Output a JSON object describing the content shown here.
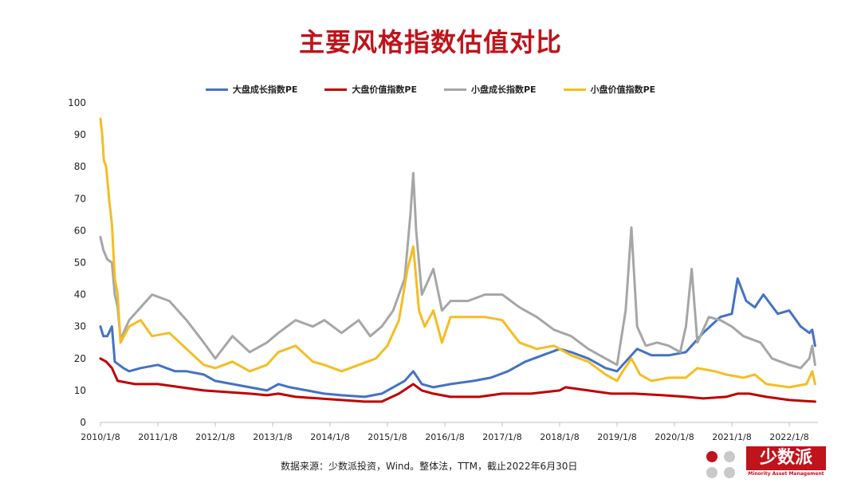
{
  "title": "主要风格指数估值对比",
  "source": "数据来源：少数派投资，Wind。整体法，TTM，截止2022年6月30日",
  "logo": {
    "text": "少数派",
    "subtitle": "Minority Asset Management"
  },
  "colors": {
    "title": "#c0131b",
    "large_growth": "#4472c4",
    "large_value": "#c00000",
    "small_growth": "#a6a6a6",
    "small_value": "#f5bd22"
  },
  "chart_data": {
    "type": "line",
    "title": "",
    "xlabel": "",
    "ylabel": "",
    "ylim": [
      0,
      100
    ],
    "yticks": [
      0,
      10,
      20,
      30,
      40,
      50,
      60,
      70,
      80,
      90,
      100
    ],
    "xlim": [
      2010.0,
      2022.5
    ],
    "xtick_labels": [
      "2010/1/8",
      "2011/1/8",
      "2012/1/8",
      "2013/1/8",
      "2014/1/8",
      "2015/1/8",
      "2016/1/8",
      "2017/1/8",
      "2018/1/8",
      "2019/1/8",
      "2020/1/8",
      "2021/1/8",
      "2022/1/8"
    ],
    "xtick_values": [
      2010.0,
      2011.0,
      2012.0,
      2013.0,
      2014.0,
      2015.0,
      2016.0,
      2017.0,
      2018.0,
      2019.0,
      2020.0,
      2021.0,
      2022.0
    ],
    "legend_position": "top",
    "grid": false,
    "series": [
      {
        "name": "大盘成长指数PE",
        "color": "#4472c4",
        "points": [
          [
            2010.0,
            30
          ],
          [
            2010.05,
            27
          ],
          [
            2010.12,
            27
          ],
          [
            2010.2,
            30
          ],
          [
            2010.25,
            19
          ],
          [
            2010.4,
            17
          ],
          [
            2010.5,
            16
          ],
          [
            2010.7,
            17
          ],
          [
            2011.0,
            18
          ],
          [
            2011.3,
            16
          ],
          [
            2011.5,
            16
          ],
          [
            2011.8,
            15
          ],
          [
            2012.0,
            13
          ],
          [
            2012.3,
            12
          ],
          [
            2012.6,
            11
          ],
          [
            2012.9,
            10
          ],
          [
            2013.1,
            12
          ],
          [
            2013.3,
            11
          ],
          [
            2013.6,
            10
          ],
          [
            2013.9,
            9
          ],
          [
            2014.2,
            8.5
          ],
          [
            2014.6,
            8
          ],
          [
            2014.9,
            9
          ],
          [
            2015.1,
            11
          ],
          [
            2015.3,
            13
          ],
          [
            2015.45,
            16
          ],
          [
            2015.6,
            12
          ],
          [
            2015.8,
            11
          ],
          [
            2016.1,
            12
          ],
          [
            2016.5,
            13
          ],
          [
            2016.8,
            14
          ],
          [
            2017.1,
            16
          ],
          [
            2017.4,
            19
          ],
          [
            2017.7,
            21
          ],
          [
            2018.0,
            23
          ],
          [
            2018.2,
            22
          ],
          [
            2018.5,
            20
          ],
          [
            2018.8,
            17
          ],
          [
            2019.0,
            16
          ],
          [
            2019.2,
            20
          ],
          [
            2019.35,
            23
          ],
          [
            2019.6,
            21
          ],
          [
            2019.9,
            21
          ],
          [
            2020.2,
            22
          ],
          [
            2020.5,
            28
          ],
          [
            2020.8,
            33
          ],
          [
            2021.0,
            34
          ],
          [
            2021.1,
            45
          ],
          [
            2021.25,
            38
          ],
          [
            2021.4,
            36
          ],
          [
            2021.55,
            40
          ],
          [
            2021.8,
            34
          ],
          [
            2022.0,
            35
          ],
          [
            2022.2,
            30
          ],
          [
            2022.35,
            28
          ],
          [
            2022.4,
            29
          ],
          [
            2022.45,
            24
          ]
        ]
      },
      {
        "name": "大盘价值指数PE",
        "color": "#c00000",
        "points": [
          [
            2010.0,
            20
          ],
          [
            2010.1,
            19
          ],
          [
            2010.2,
            17
          ],
          [
            2010.3,
            13
          ],
          [
            2010.6,
            12
          ],
          [
            2011.0,
            12
          ],
          [
            2011.4,
            11
          ],
          [
            2011.8,
            10
          ],
          [
            2012.2,
            9.5
          ],
          [
            2012.6,
            9
          ],
          [
            2012.9,
            8.5
          ],
          [
            2013.1,
            9
          ],
          [
            2013.4,
            8
          ],
          [
            2013.8,
            7.5
          ],
          [
            2014.2,
            7
          ],
          [
            2014.6,
            6.5
          ],
          [
            2014.9,
            6.5
          ],
          [
            2015.2,
            9
          ],
          [
            2015.45,
            12
          ],
          [
            2015.6,
            10
          ],
          [
            2015.8,
            9
          ],
          [
            2016.1,
            8
          ],
          [
            2016.6,
            8
          ],
          [
            2017.0,
            9
          ],
          [
            2017.5,
            9
          ],
          [
            2018.0,
            10
          ],
          [
            2018.1,
            11
          ],
          [
            2018.5,
            10
          ],
          [
            2018.9,
            9
          ],
          [
            2019.3,
            9
          ],
          [
            2019.8,
            8.5
          ],
          [
            2020.2,
            8
          ],
          [
            2020.5,
            7.5
          ],
          [
            2020.9,
            8
          ],
          [
            2021.1,
            9
          ],
          [
            2021.3,
            9
          ],
          [
            2021.6,
            8
          ],
          [
            2022.0,
            7
          ],
          [
            2022.45,
            6.5
          ]
        ]
      },
      {
        "name": "小盘成长指数PE",
        "color": "#a6a6a6",
        "points": [
          [
            2010.0,
            58
          ],
          [
            2010.05,
            54
          ],
          [
            2010.12,
            51
          ],
          [
            2010.2,
            50
          ],
          [
            2010.25,
            40
          ],
          [
            2010.3,
            36
          ],
          [
            2010.35,
            26
          ],
          [
            2010.5,
            32
          ],
          [
            2010.7,
            36
          ],
          [
            2010.9,
            40
          ],
          [
            2011.2,
            38
          ],
          [
            2011.5,
            32
          ],
          [
            2011.8,
            25
          ],
          [
            2012.0,
            20
          ],
          [
            2012.3,
            27
          ],
          [
            2012.6,
            22
          ],
          [
            2012.9,
            25
          ],
          [
            2013.1,
            28
          ],
          [
            2013.4,
            32
          ],
          [
            2013.7,
            30
          ],
          [
            2013.9,
            32
          ],
          [
            2014.2,
            28
          ],
          [
            2014.5,
            32
          ],
          [
            2014.7,
            27
          ],
          [
            2014.9,
            30
          ],
          [
            2015.1,
            35
          ],
          [
            2015.3,
            45
          ],
          [
            2015.4,
            65
          ],
          [
            2015.45,
            78
          ],
          [
            2015.5,
            60
          ],
          [
            2015.6,
            40
          ],
          [
            2015.8,
            48
          ],
          [
            2015.95,
            35
          ],
          [
            2016.1,
            38
          ],
          [
            2016.4,
            38
          ],
          [
            2016.7,
            40
          ],
          [
            2017.0,
            40
          ],
          [
            2017.3,
            36
          ],
          [
            2017.6,
            33
          ],
          [
            2017.9,
            29
          ],
          [
            2018.2,
            27
          ],
          [
            2018.5,
            23
          ],
          [
            2018.8,
            20
          ],
          [
            2019.0,
            18
          ],
          [
            2019.15,
            35
          ],
          [
            2019.25,
            61
          ],
          [
            2019.35,
            30
          ],
          [
            2019.5,
            24
          ],
          [
            2019.7,
            25
          ],
          [
            2019.9,
            24
          ],
          [
            2020.1,
            22
          ],
          [
            2020.2,
            30
          ],
          [
            2020.3,
            48
          ],
          [
            2020.4,
            25
          ],
          [
            2020.6,
            33
          ],
          [
            2020.8,
            32
          ],
          [
            2021.0,
            30
          ],
          [
            2021.2,
            27
          ],
          [
            2021.5,
            25
          ],
          [
            2021.7,
            20
          ],
          [
            2022.0,
            18
          ],
          [
            2022.2,
            17
          ],
          [
            2022.35,
            20
          ],
          [
            2022.4,
            24
          ],
          [
            2022.45,
            18
          ]
        ]
      },
      {
        "name": "小盘价值指数PE",
        "color": "#f5bd22",
        "points": [
          [
            2010.0,
            95
          ],
          [
            2010.03,
            90
          ],
          [
            2010.06,
            82
          ],
          [
            2010.1,
            80
          ],
          [
            2010.15,
            70
          ],
          [
            2010.2,
            62
          ],
          [
            2010.25,
            45
          ],
          [
            2010.3,
            40
          ],
          [
            2010.35,
            25
          ],
          [
            2010.5,
            30
          ],
          [
            2010.7,
            32
          ],
          [
            2010.9,
            27
          ],
          [
            2011.2,
            28
          ],
          [
            2011.5,
            23
          ],
          [
            2011.8,
            18
          ],
          [
            2012.0,
            17
          ],
          [
            2012.3,
            19
          ],
          [
            2012.6,
            16
          ],
          [
            2012.9,
            18
          ],
          [
            2013.1,
            22
          ],
          [
            2013.4,
            24
          ],
          [
            2013.7,
            19
          ],
          [
            2013.9,
            18
          ],
          [
            2014.2,
            16
          ],
          [
            2014.5,
            18
          ],
          [
            2014.8,
            20
          ],
          [
            2015.0,
            24
          ],
          [
            2015.2,
            32
          ],
          [
            2015.35,
            48
          ],
          [
            2015.45,
            55
          ],
          [
            2015.55,
            35
          ],
          [
            2015.65,
            30
          ],
          [
            2015.8,
            35
          ],
          [
            2015.95,
            25
          ],
          [
            2016.1,
            33
          ],
          [
            2016.4,
            33
          ],
          [
            2016.7,
            33
          ],
          [
            2017.0,
            32
          ],
          [
            2017.3,
            25
          ],
          [
            2017.6,
            23
          ],
          [
            2017.9,
            24
          ],
          [
            2018.2,
            21
          ],
          [
            2018.5,
            19
          ],
          [
            2018.8,
            15
          ],
          [
            2019.0,
            13
          ],
          [
            2019.1,
            16
          ],
          [
            2019.25,
            20
          ],
          [
            2019.4,
            15
          ],
          [
            2019.6,
            13
          ],
          [
            2019.9,
            14
          ],
          [
            2020.2,
            14
          ],
          [
            2020.4,
            17
          ],
          [
            2020.7,
            16
          ],
          [
            2020.9,
            15
          ],
          [
            2021.2,
            14
          ],
          [
            2021.4,
            15
          ],
          [
            2021.6,
            12
          ],
          [
            2022.0,
            11
          ],
          [
            2022.3,
            12
          ],
          [
            2022.4,
            16
          ],
          [
            2022.45,
            12
          ]
        ]
      }
    ]
  }
}
